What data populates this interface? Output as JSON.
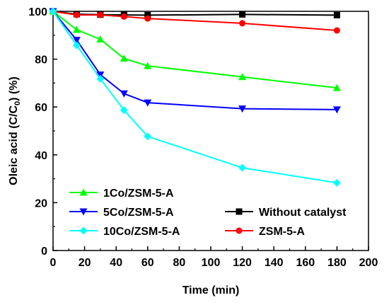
{
  "chart_data": {
    "type": "line",
    "title": "",
    "xlabel": "Time (min)",
    "ylabel_main": "Oleic acid (C/C",
    "ylabel_sub": "0",
    "ylabel_tail": ") (%)",
    "xlim": [
      0,
      200
    ],
    "ylim": [
      0,
      100
    ],
    "xticks": [
      0,
      20,
      40,
      60,
      80,
      100,
      120,
      140,
      160,
      180,
      200
    ],
    "yticks": [
      0,
      20,
      40,
      60,
      80,
      100
    ],
    "grid": false,
    "series": [
      {
        "name": "Without catalyst",
        "color": "#000000",
        "marker": "square",
        "x": [
          0,
          15,
          30,
          45,
          60,
          120,
          180
        ],
        "y": [
          100,
          98.8,
          98.6,
          98.5,
          98.4,
          98.7,
          98.4
        ]
      },
      {
        "name": "ZSM-5-A",
        "color": "#ff0000",
        "marker": "circle",
        "x": [
          0,
          15,
          30,
          45,
          60,
          120,
          180
        ],
        "y": [
          100,
          98.5,
          98.5,
          97.8,
          97.0,
          95.0,
          92.0
        ]
      },
      {
        "name": "1Co/ZSM-5-A",
        "color": "#00ff00",
        "marker": "triangle-up",
        "x": [
          0,
          15,
          30,
          45,
          60,
          120,
          180
        ],
        "y": [
          100,
          92.3,
          88.3,
          80.3,
          77.2,
          72.6,
          68.0
        ]
      },
      {
        "name": "5Co/ZSM-5-A",
        "color": "#0000ff",
        "marker": "triangle-down",
        "x": [
          0,
          15,
          30,
          45,
          60,
          120,
          180
        ],
        "y": [
          100,
          88.0,
          73.5,
          65.6,
          61.8,
          59.3,
          58.9
        ]
      },
      {
        "name": "10Co/ZSM-5-A",
        "color": "#00ffff",
        "marker": "diamond",
        "x": [
          0,
          15,
          30,
          45,
          60,
          120,
          180
        ],
        "y": [
          100,
          85.8,
          71.8,
          58.7,
          47.7,
          34.6,
          28.3
        ]
      }
    ],
    "legend": {
      "left": [
        "1Co/ZSM-5-A",
        "5Co/ZSM-5-A",
        "10Co/ZSM-5-A"
      ],
      "right": [
        "Without catalyst",
        "ZSM-5-A"
      ]
    }
  }
}
